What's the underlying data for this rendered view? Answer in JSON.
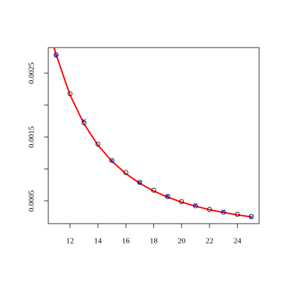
{
  "chart_data": {
    "type": "scatter",
    "xlim": [
      10.44,
      25.56
    ],
    "ylim": [
      0.000144,
      0.0029
    ],
    "xticks": [
      12,
      14,
      16,
      18,
      20,
      22,
      24
    ],
    "yticks": [
      0.0005,
      0.0015,
      0.0025
    ],
    "yticks_minor": [
      0.001,
      0.002
    ],
    "series": [
      {
        "marker": "circle",
        "color": "#000000",
        "x": [
          11,
          12,
          13,
          14,
          15,
          16,
          17,
          18,
          19,
          20,
          21,
          22,
          23,
          24,
          25
        ],
        "values": [
          0.002789,
          0.002178,
          0.001722,
          0.001389,
          0.001133,
          0.000944,
          0.000789,
          0.000667,
          0.000567,
          0.000489,
          0.000422,
          0.000367,
          0.000322,
          0.000289,
          0.000256
        ]
      },
      {
        "marker": "x",
        "color": "#0000ff",
        "x": [
          11,
          13,
          15,
          17,
          19,
          21,
          23,
          25
        ],
        "values": [
          0.002767,
          0.001756,
          0.001133,
          0.000789,
          0.000578,
          0.000433,
          0.000333,
          0.000244
        ]
      },
      {
        "marker": "line",
        "color": "#ff0000",
        "x": [
          10.8,
          11,
          12,
          13,
          14,
          15,
          16,
          17,
          18,
          19,
          20,
          21,
          22,
          23,
          24,
          25
        ],
        "values": [
          0.00294,
          0.00279,
          0.002158,
          0.001706,
          0.001372,
          0.00112,
          0.000926,
          0.000775,
          0.000655,
          0.000559,
          0.000481,
          0.000417,
          0.000363,
          0.000319,
          0.000281,
          0.000249
        ]
      }
    ]
  }
}
